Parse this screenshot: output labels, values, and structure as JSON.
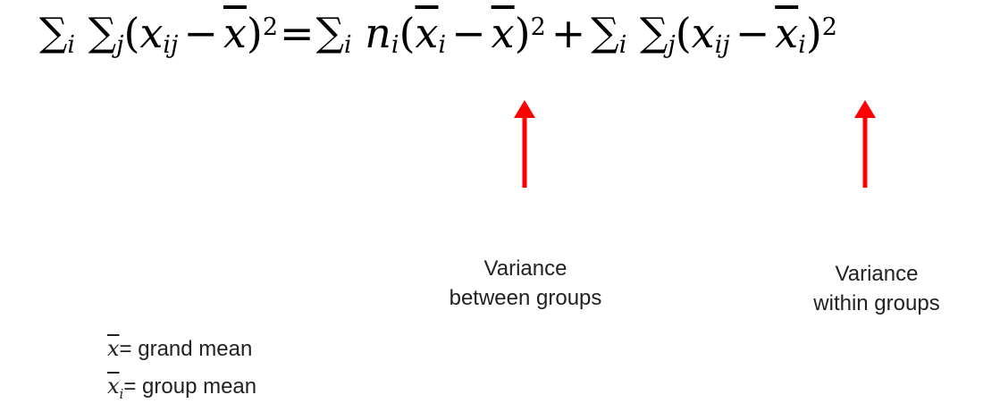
{
  "equation": {
    "lhs": {
      "sum1": "∑",
      "idx_i": "i",
      "sum2": "∑",
      "idx_j": "j",
      "open": "(",
      "x": "x",
      "sub_ij": "ij",
      "minus": "−",
      "xbar": "x",
      "close": ")",
      "power": "2"
    },
    "equals": "=",
    "term1": {
      "sum": "∑",
      "idx_i": "i",
      "n": "n",
      "sub_i": "i",
      "open": "(",
      "xbar": "x",
      "sub_i2": "i",
      "minus": "−",
      "xbar2": "x",
      "close": ")",
      "power": "2"
    },
    "plus": "+",
    "term2": {
      "sum1": "∑",
      "idx_i": "i",
      "sum2": "∑",
      "idx_j": "j",
      "open": "(",
      "x": "x",
      "sub_ij": "ij",
      "minus": "−",
      "xbar": "x",
      "sub_i": "i",
      "close": ")",
      "power": "2"
    }
  },
  "annotations": {
    "between_line1": "Variance",
    "between_line2": "between groups",
    "within_line1": "Variance",
    "within_line2": "within groups"
  },
  "legend": {
    "grand_symbol": "x",
    "grand_text": "= grand mean",
    "group_symbol": "x",
    "group_sub": "i",
    "group_text": "= group mean"
  },
  "colors": {
    "arrow": "#ff0000"
  }
}
